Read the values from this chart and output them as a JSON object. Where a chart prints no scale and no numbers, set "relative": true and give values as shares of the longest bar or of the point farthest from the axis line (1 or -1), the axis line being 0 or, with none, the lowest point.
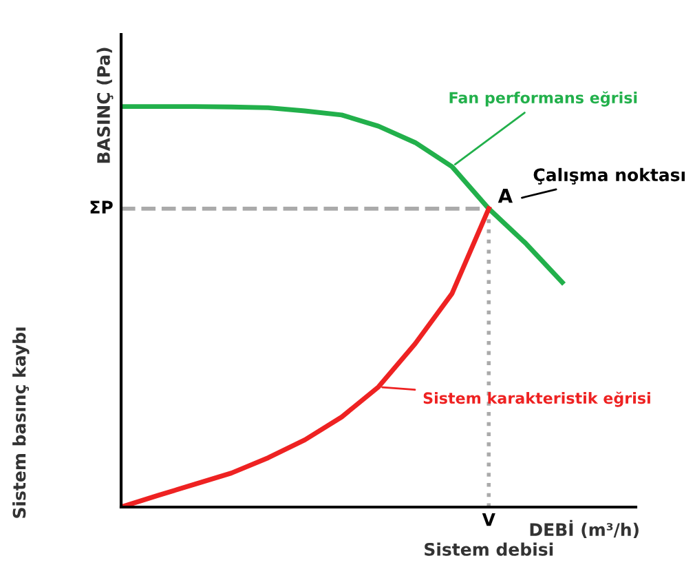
{
  "chart_data": {
    "type": "line",
    "relative": true,
    "ylabel": "BASINÇ (Pa)",
    "xlabel": "DEBİ (m³/h)",
    "categories": [
      null,
      null,
      null,
      null,
      null,
      null,
      null,
      null,
      null,
      null,
      null,
      null,
      null
    ],
    "series": [
      {
        "color": "#22b04b",
        "values": [
          1,
          1,
          1,
          0.999,
          0.997,
          0.989,
          0.979,
          0.951,
          0.91,
          0.85,
          0.745,
          0.659,
          0.561
        ]
      },
      {
        "color": "#ee2222",
        "values": [
          0,
          0.029,
          0.057,
          0.085,
          0.123,
          0.168,
          0.225,
          0.3,
          0.408,
          0.533,
          0.745,
          null,
          null
        ]
      }
    ],
    "ref_lines": [
      {
        "axis": "y",
        "value": 0.745,
        "label": "ΣP",
        "color": "#aaaaaa",
        "line_style": "dashed"
      }
    ],
    "annotations": [
      "Sistem basınç kaybı",
      "V",
      "Sistem debisi",
      "Fan performans eğrisi",
      "Sistem karakteristik eğrisi",
      "A",
      "Çalışma noktası"
    ],
    "marker": "none",
    "line_style": "solid"
  }
}
